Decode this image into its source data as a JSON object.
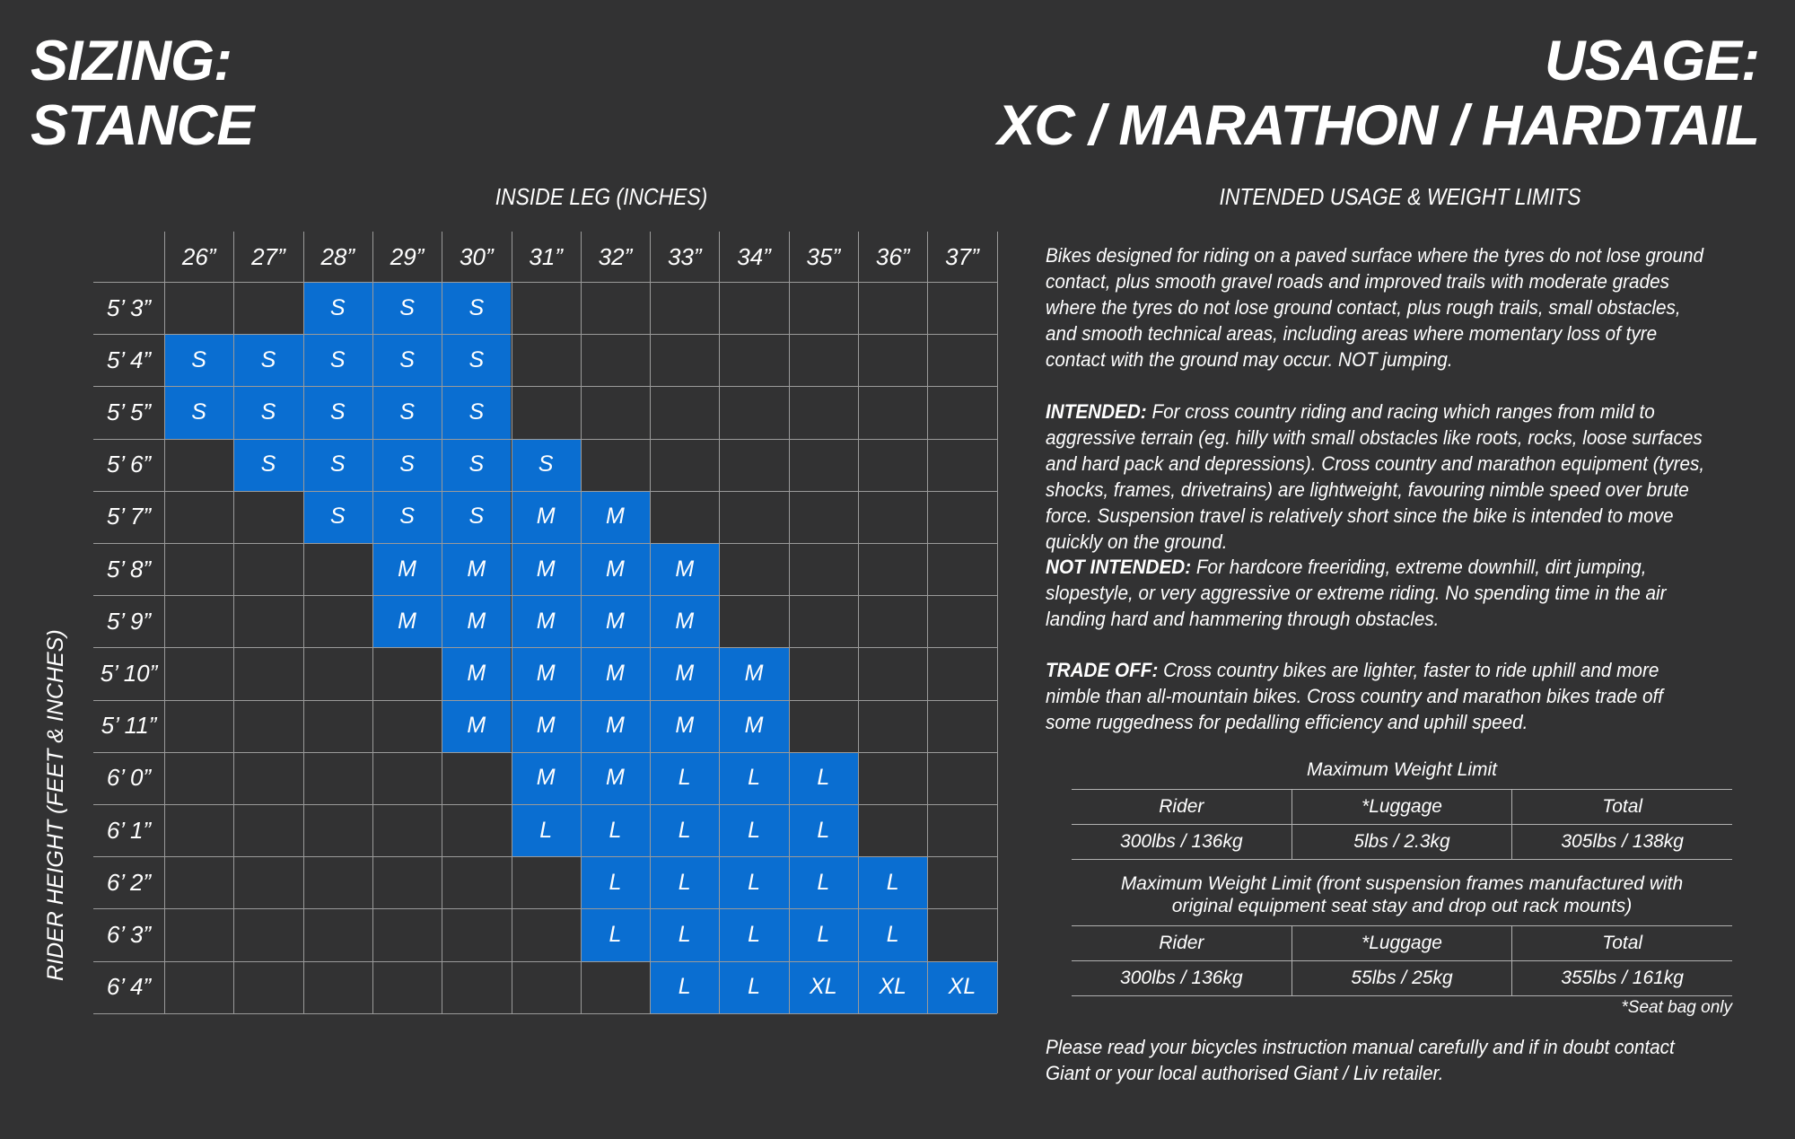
{
  "titles": {
    "left_line1": "SIZING:",
    "left_line2": "STANCE",
    "right_line1": "USAGE:",
    "right_line2": "XC / MARATHON / HARDTAIL"
  },
  "captions": {
    "inside_leg": "INSIDE LEG (INCHES)",
    "rider_height": "RIDER HEIGHT (FEET & INCHES)",
    "usage": "INTENDED USAGE & WEIGHT LIMITS"
  },
  "sizing": {
    "columns": [
      "26”",
      "27”",
      "28”",
      "29”",
      "30”",
      "31”",
      "32”",
      "33”",
      "34”",
      "35”",
      "36”",
      "37”"
    ],
    "rows": [
      {
        "label": "5’ 3”",
        "start": 2,
        "sizes": [
          "S",
          "S",
          "S"
        ]
      },
      {
        "label": "5’ 4”",
        "start": 0,
        "sizes": [
          "S",
          "S",
          "S",
          "S",
          "S"
        ]
      },
      {
        "label": "5’ 5”",
        "start": 0,
        "sizes": [
          "S",
          "S",
          "S",
          "S",
          "S"
        ]
      },
      {
        "label": "5’ 6”",
        "start": 1,
        "sizes": [
          "S",
          "S",
          "S",
          "S",
          "S"
        ]
      },
      {
        "label": "5’ 7”",
        "start": 2,
        "sizes": [
          "S",
          "S",
          "S",
          "M",
          "M"
        ]
      },
      {
        "label": "5’ 8”",
        "start": 3,
        "sizes": [
          "M",
          "M",
          "M",
          "M",
          "M"
        ]
      },
      {
        "label": "5’ 9”",
        "start": 3,
        "sizes": [
          "M",
          "M",
          "M",
          "M",
          "M"
        ]
      },
      {
        "label": "5’ 10”",
        "start": 4,
        "sizes": [
          "M",
          "M",
          "M",
          "M",
          "M"
        ]
      },
      {
        "label": "5’ 11”",
        "start": 4,
        "sizes": [
          "M",
          "M",
          "M",
          "M",
          "M"
        ]
      },
      {
        "label": "6’ 0”",
        "start": 5,
        "sizes": [
          "M",
          "M",
          "L",
          "L",
          "L"
        ]
      },
      {
        "label": "6’ 1”",
        "start": 5,
        "sizes": [
          "L",
          "L",
          "L",
          "L",
          "L"
        ]
      },
      {
        "label": "6’ 2”",
        "start": 6,
        "sizes": [
          "L",
          "L",
          "L",
          "L",
          "L"
        ]
      },
      {
        "label": "6’ 3”",
        "start": 6,
        "sizes": [
          "L",
          "L",
          "L",
          "L",
          "L"
        ]
      },
      {
        "label": "6’ 4”",
        "start": 7,
        "sizes": [
          "L",
          "L",
          "XL",
          "XL",
          "XL"
        ]
      }
    ]
  },
  "usage": {
    "intro": "Bikes designed for  riding on a paved surface where the tyres do not lose ground contact, plus smooth gravel roads and improved trails with moderate grades where the tyres do not lose ground contact, plus rough trails, small obstacles, and smooth technical areas, including areas where momentary loss of tyre contact with the ground may occur. NOT jumping.",
    "intended_label": "INTENDED:",
    "intended_text": " For cross country riding and racing which ranges from mild to aggressive terrain (eg. hilly with small obstacles like roots, rocks, loose surfaces and hard pack and depressions). Cross country and marathon equipment (tyres, shocks, frames, drivetrains) are lightweight, favouring nimble speed over brute force. Suspension travel is relatively short since the bike is intended to move quickly on the ground.",
    "not_intended_label": "NOT INTENDED:",
    "not_intended_text": " For hardcore freeriding, extreme downhill, dirt jumping, slopestyle, or very aggressive or extreme riding. No spending time in the air landing hard and hammering through obstacles.",
    "trade_off_label": "TRADE OFF:",
    "trade_off_text": " Cross country bikes are lighter, faster to ride uphill and more nimble than all-mountain bikes. Cross country and marathon bikes trade off some ruggedness for pedalling efficiency and uphill speed.",
    "footer": "Please read your bicycles instruction manual carefully and if in doubt contact Giant or your local authorised Giant / Liv retailer."
  },
  "weights": {
    "table1_title": "Maximum Weight Limit",
    "table2_title": "Maximum Weight Limit (front suspension frames manufactured with original equipment seat stay and drop out rack mounts)",
    "headers": [
      "Rider",
      "*Luggage",
      "Total"
    ],
    "table1_values": [
      "300lbs / 136kg",
      "5lbs / 2.3kg",
      "305lbs / 138kg"
    ],
    "table2_values": [
      "300lbs / 136kg",
      "55lbs / 25kg",
      "355lbs / 161kg"
    ],
    "footnote": "*Seat bag only"
  },
  "colors": {
    "background": "#323233",
    "fit_cell": "#0a6ed1",
    "grid_line": "#9a9a9a"
  }
}
